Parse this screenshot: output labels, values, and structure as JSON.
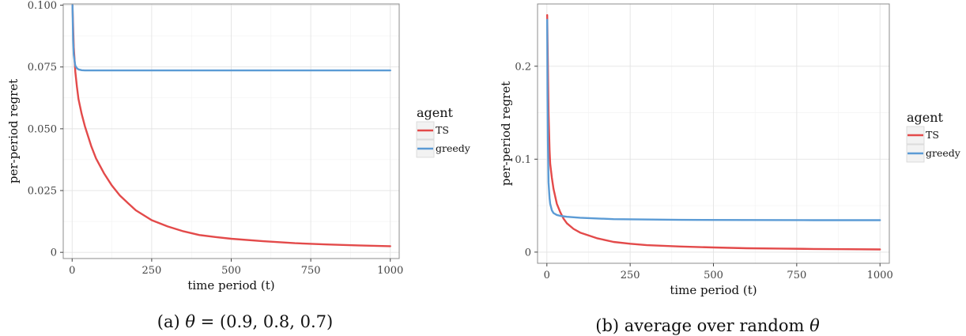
{
  "chart_data": [
    {
      "type": "line",
      "caption_prefix": "(a) ",
      "caption_theta": "θ",
      "caption_suffix": " = (0.9, 0.8, 0.7)",
      "xlabel": "time period (t)",
      "ylabel": "per-period regret",
      "xlim": [
        -28,
        1028
      ],
      "ylim": [
        -0.0025,
        0.1005
      ],
      "x_ticks": [
        0,
        250,
        500,
        750,
        1000
      ],
      "x_tick_labels": [
        "0",
        "250",
        "500",
        "750",
        "1000"
      ],
      "y_ticks": [
        0,
        0.025,
        0.05,
        0.075,
        0.1
      ],
      "y_tick_labels": [
        "0",
        "0.025",
        "0.050",
        "0.075",
        "0.100"
      ],
      "grid": true,
      "legend_position": "right",
      "legend_title": "agent",
      "series": [
        {
          "name": "TS",
          "color": "#e34a4a",
          "x": [
            1,
            5,
            10,
            15,
            20,
            30,
            40,
            50,
            60,
            75,
            100,
            125,
            150,
            175,
            200,
            250,
            300,
            350,
            400,
            450,
            500,
            600,
            700,
            800,
            900,
            1000
          ],
          "y": [
            0.1,
            0.083,
            0.073,
            0.067,
            0.062,
            0.056,
            0.051,
            0.047,
            0.043,
            0.038,
            0.032,
            0.027,
            0.023,
            0.02,
            0.017,
            0.013,
            0.0105,
            0.0085,
            0.007,
            0.0062,
            0.0055,
            0.0045,
            0.0037,
            0.0032,
            0.0028,
            0.0025
          ]
        },
        {
          "name": "greedy",
          "color": "#5b9bd5",
          "x": [
            1,
            3,
            5,
            8,
            10,
            15,
            20,
            30,
            40,
            60,
            100,
            200,
            400,
            600,
            800,
            1000
          ],
          "y": [
            0.1,
            0.086,
            0.08,
            0.077,
            0.0755,
            0.0745,
            0.074,
            0.0737,
            0.0736,
            0.0736,
            0.0736,
            0.0736,
            0.0736,
            0.0736,
            0.0736,
            0.0736
          ]
        }
      ]
    },
    {
      "type": "line",
      "caption_prefix": "(b) average over random ",
      "caption_theta": "θ",
      "caption_suffix": "",
      "xlabel": "time period (t)",
      "ylabel": "per-period regret",
      "xlim": [
        -28,
        1028
      ],
      "ylim": [
        -0.012,
        0.267
      ],
      "x_ticks": [
        0,
        250,
        500,
        750,
        1000
      ],
      "x_tick_labels": [
        "0",
        "250",
        "500",
        "750",
        "1000"
      ],
      "y_ticks": [
        0,
        0.1,
        0.2
      ],
      "y_tick_labels": [
        "0",
        "0.1",
        "0.2"
      ],
      "grid": true,
      "legend_position": "right",
      "legend_title": "agent",
      "series": [
        {
          "name": "TS",
          "color": "#e34a4a",
          "x": [
            1,
            3,
            5,
            8,
            10,
            15,
            20,
            30,
            40,
            50,
            60,
            80,
            100,
            150,
            200,
            250,
            300,
            400,
            500,
            600,
            700,
            800,
            900,
            1000
          ],
          "y": [
            0.255,
            0.2,
            0.15,
            0.11,
            0.095,
            0.08,
            0.068,
            0.052,
            0.043,
            0.036,
            0.031,
            0.025,
            0.021,
            0.015,
            0.011,
            0.009,
            0.0075,
            0.006,
            0.005,
            0.0042,
            0.0038,
            0.0034,
            0.0031,
            0.0029
          ]
        },
        {
          "name": "greedy",
          "color": "#5b9bd5",
          "x": [
            1,
            2,
            3,
            5,
            8,
            10,
            15,
            20,
            30,
            40,
            60,
            100,
            200,
            400,
            600,
            800,
            1000
          ],
          "y": [
            0.25,
            0.17,
            0.12,
            0.075,
            0.058,
            0.052,
            0.045,
            0.042,
            0.04,
            0.039,
            0.038,
            0.037,
            0.0355,
            0.0347,
            0.0345,
            0.0344,
            0.0344
          ]
        }
      ]
    }
  ]
}
